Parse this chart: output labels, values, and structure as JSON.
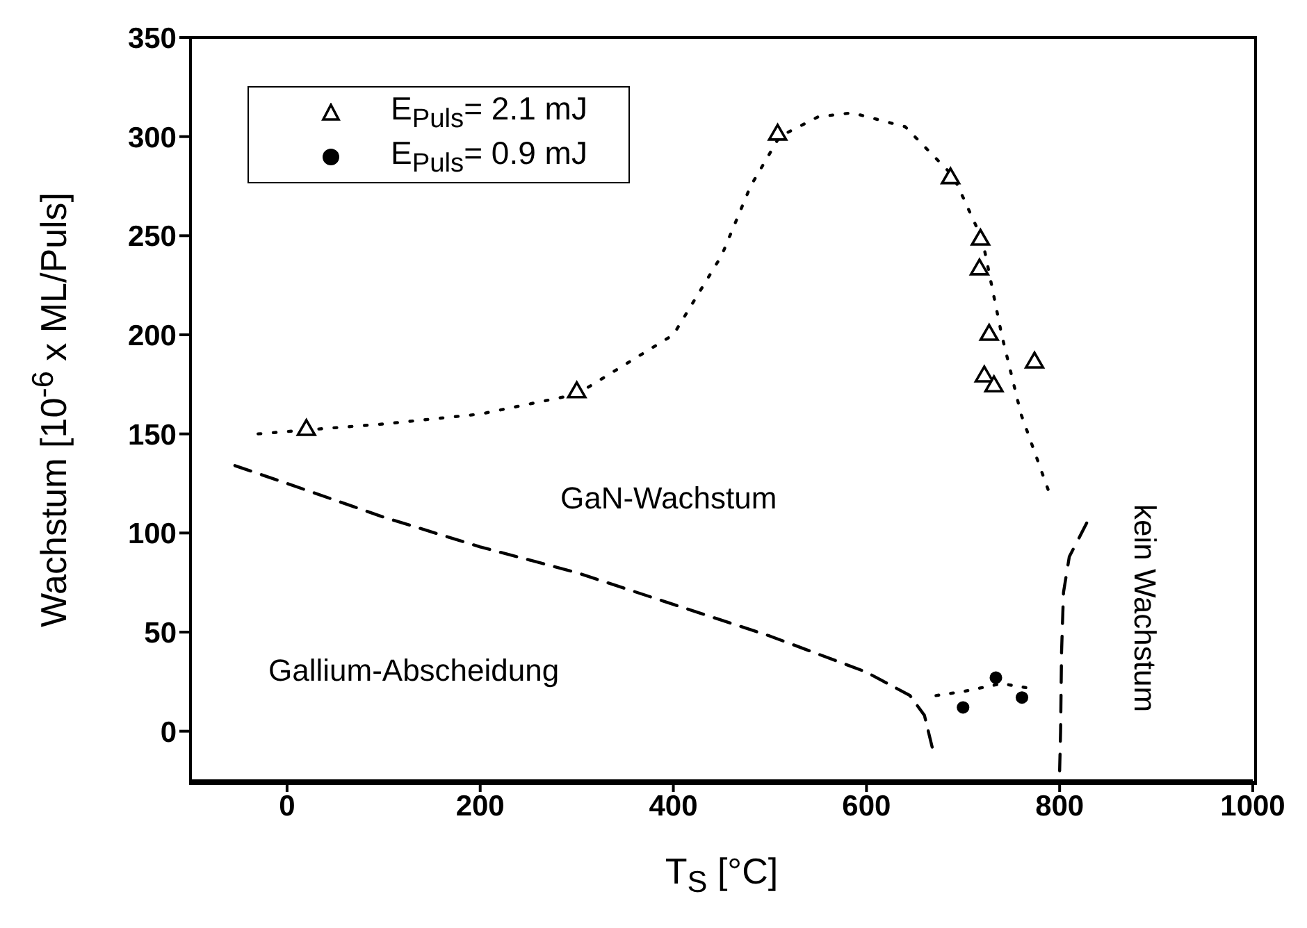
{
  "chart_data": {
    "type": "scatter",
    "xlabel": "T$_{S}$ [°C]",
    "ylabel": "Wachstum [10$^{-6}$ x ML/Puls]",
    "xlim": [
      -100,
      1000
    ],
    "xticks": [
      0,
      200,
      400,
      600,
      800,
      1000
    ],
    "ylim": [
      -25,
      350
    ],
    "yticks": [
      0,
      50,
      100,
      150,
      200,
      250,
      300,
      350
    ],
    "legend": "top left",
    "grid": false,
    "series": [
      {
        "name": "E$_{Puls}$= 2.1 mJ",
        "marker": "triangle",
        "color": "#000000",
        "x": [
          20,
          300,
          508,
          687,
          718,
          717,
          727,
          722,
          732,
          774
        ],
        "values": [
          152,
          171,
          301,
          279,
          248,
          233,
          200,
          179,
          174,
          186
        ]
      },
      {
        "name": "E$_{Puls}$= 0.9 mJ",
        "marker": "circle",
        "color": "#000000",
        "x": [
          700,
          734,
          761
        ],
        "values": [
          12,
          27,
          17
        ]
      },
      {
        "type": "line",
        "line_style": "dotted",
        "marker": "none",
        "color": "#000000",
        "x": [
          -30,
          20,
          100,
          200,
          300,
          400,
          450,
          480,
          510,
          550,
          585,
          640,
          690,
          720,
          740,
          760,
          788
        ],
        "values": [
          150,
          152,
          155,
          160,
          170,
          200,
          240,
          275,
          300,
          310,
          312,
          305,
          280,
          248,
          200,
          160,
          122
        ]
      },
      {
        "type": "line",
        "line_style": "dotted",
        "marker": "none",
        "color": "#000000",
        "x": [
          672,
          700,
          740,
          765
        ],
        "values": [
          18,
          20,
          24,
          22
        ]
      },
      {
        "type": "line",
        "line_style": "dashed",
        "marker": "none",
        "color": "#000000",
        "x": [
          -54,
          0,
          100,
          200,
          300,
          400,
          500,
          599,
          645,
          660,
          668
        ],
        "values": [
          134,
          125,
          108,
          93,
          80,
          64,
          48,
          30,
          18,
          8,
          -8
        ]
      },
      {
        "type": "line",
        "line_style": "dashed",
        "marker": "none",
        "color": "#000000",
        "x": [
          800,
          801,
          802,
          804,
          810,
          828
        ],
        "values": [
          -20,
          0,
          40,
          70,
          88,
          105
        ]
      }
    ],
    "annotations": [
      "GaN-Wachstum",
      "Gallium-Abscheidung",
      "kein Wachstum"
    ]
  }
}
